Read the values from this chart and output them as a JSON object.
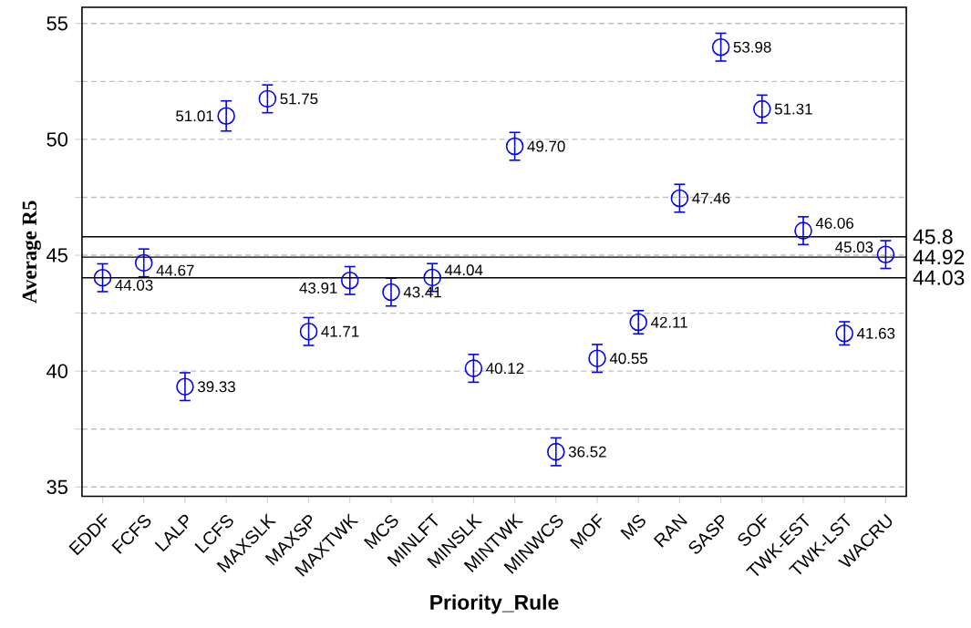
{
  "chart_data": {
    "type": "scatter",
    "xlabel": "Priority_Rule",
    "ylabel": "Average  R5",
    "categories": [
      "EDDF",
      "FCFS",
      "LALP",
      "LCFS",
      "MAXSLK",
      "MAXSP",
      "MAXTWK",
      "MCS",
      "MINLFT",
      "MINSLK",
      "MINTWK",
      "MINWCS",
      "MOF",
      "MS",
      "RAN",
      "SASP",
      "SOF",
      "TWK-EST",
      "TWK-LST",
      "WACRU"
    ],
    "series": [
      {
        "color": "#0000ff",
        "values": [
          44.03,
          44.67,
          39.33,
          51.01,
          51.75,
          41.71,
          43.91,
          43.41,
          44.04,
          40.12,
          49.7,
          36.52,
          40.55,
          42.11,
          47.46,
          53.98,
          51.31,
          46.06,
          41.63,
          45.03
        ],
        "errors": [
          0.6,
          0.6,
          0.6,
          0.65,
          0.6,
          0.6,
          0.6,
          0.6,
          0.6,
          0.6,
          0.6,
          0.6,
          0.6,
          0.5,
          0.6,
          0.6,
          0.6,
          0.6,
          0.5,
          0.6
        ],
        "value_labels": [
          "44.03",
          "44.67",
          "39.33",
          "51.01",
          "51.75",
          "41.71",
          "43.91",
          "43.41",
          "44.04",
          "40.12",
          "49.70",
          "36.52",
          "40.55",
          "42.11",
          "47.46",
          "53.98",
          "51.31",
          "46.06",
          "41.63",
          "45.03"
        ]
      }
    ],
    "ylim": [
      34.6,
      55.7
    ],
    "yticks": [
      35,
      {
        "value": 37.5,
        "label": null
      },
      40,
      {
        "value": 42.5,
        "label": null
      },
      45,
      {
        "value": 47.5,
        "label": null
      },
      50,
      {
        "value": 52.5,
        "label": null
      },
      55
    ],
    "grid": "y",
    "marker": "circle",
    "ref_lines": [
      {
        "axis": "y",
        "value": 45.8,
        "label": "45.8"
      },
      {
        "axis": "y",
        "value": 44.92,
        "label": "44.92"
      },
      {
        "axis": "y",
        "value": 44.03,
        "label": "44.03"
      }
    ]
  }
}
